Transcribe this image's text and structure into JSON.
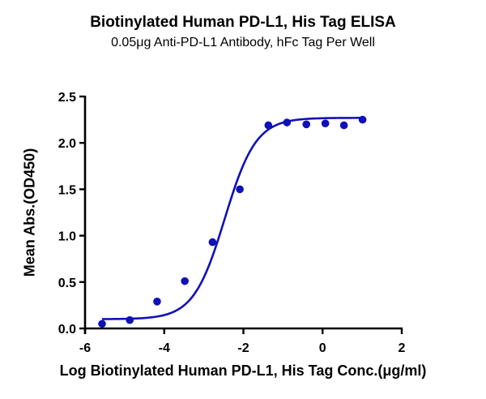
{
  "chart_data": {
    "type": "scatter",
    "title": "Biotinylated Human PD-L1, His Tag ELISA",
    "subtitle": "0.05μg Anti-PD-L1 Antibody, hFc Tag Per Well",
    "xlabel": "Log Biotinylated Human PD-L1, His Tag Conc.(μg/ml)",
    "ylabel": "Mean Abs.(OD450)",
    "xlim": [
      -6,
      2
    ],
    "ylim": [
      0,
      2.5
    ],
    "xticks": [
      -6,
      -4,
      -2,
      0,
      2
    ],
    "yticks": [
      "0.0",
      "0.5",
      "1.0",
      "1.5",
      "2.0",
      "2.5"
    ],
    "grid": false,
    "legend": null,
    "color": "#1010b8",
    "series": [
      {
        "name": "Mean Abs.(OD450)",
        "x": [
          -5.57,
          -4.87,
          -4.18,
          -3.48,
          -2.78,
          -2.09,
          -1.37,
          -0.9,
          -0.41,
          0.07,
          0.54,
          1.01
        ],
        "y": [
          0.05,
          0.09,
          0.29,
          0.51,
          0.93,
          1.5,
          2.19,
          2.22,
          2.2,
          2.21,
          2.19,
          2.25
        ]
      }
    ],
    "fit": {
      "model": "4PL",
      "bottom": 0.1,
      "top": 2.27,
      "log_ec50": -2.47,
      "hill_slope": 1.1,
      "x_range": [
        -5.57,
        1.01
      ]
    }
  }
}
